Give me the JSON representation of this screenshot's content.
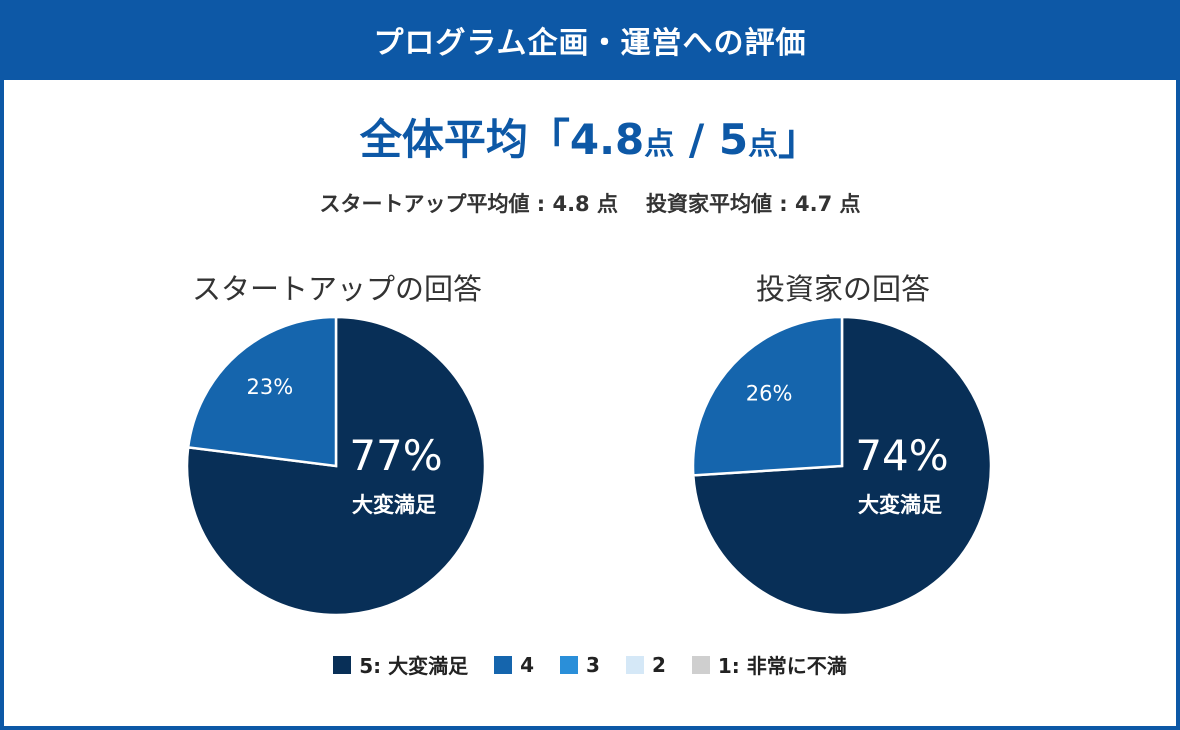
{
  "header": {
    "title": "プログラム企画・運営への評価"
  },
  "summary": {
    "prefix": "全体平均「",
    "avg": "4.8",
    "unit1": "点",
    "sep": " / ",
    "max": "5",
    "unit2": "点",
    "suffix": "」",
    "startup_avg": "スタートアップ平均値 : 4.8 点",
    "investor_avg": "投資家平均値 : 4.7 点"
  },
  "colors": {
    "5": "#082f57",
    "4": "#1565ad",
    "3": "#2a8fd9",
    "2": "#d5e8f7",
    "1": "#cfcfcf",
    "brand": "#0d58a6"
  },
  "chart_data": [
    {
      "type": "pie",
      "title": "スタートアップの回答",
      "slices": [
        {
          "label": "5: 大変満足",
          "value": 77,
          "display": "77%",
          "sub": "大変満足"
        },
        {
          "label": "4",
          "value": 23,
          "display": "23%"
        }
      ]
    },
    {
      "type": "pie",
      "title": "投資家の回答",
      "slices": [
        {
          "label": "5: 大変満足",
          "value": 74,
          "display": "74%",
          "sub": "大変満足"
        },
        {
          "label": "4",
          "value": 26,
          "display": "26%"
        }
      ]
    }
  ],
  "legend": [
    {
      "label": "5: 大変満足",
      "color_key": "5"
    },
    {
      "label": "4",
      "color_key": "4"
    },
    {
      "label": "3",
      "color_key": "3"
    },
    {
      "label": "2",
      "color_key": "2"
    },
    {
      "label": "1: 非常に不満",
      "color_key": "1"
    }
  ]
}
